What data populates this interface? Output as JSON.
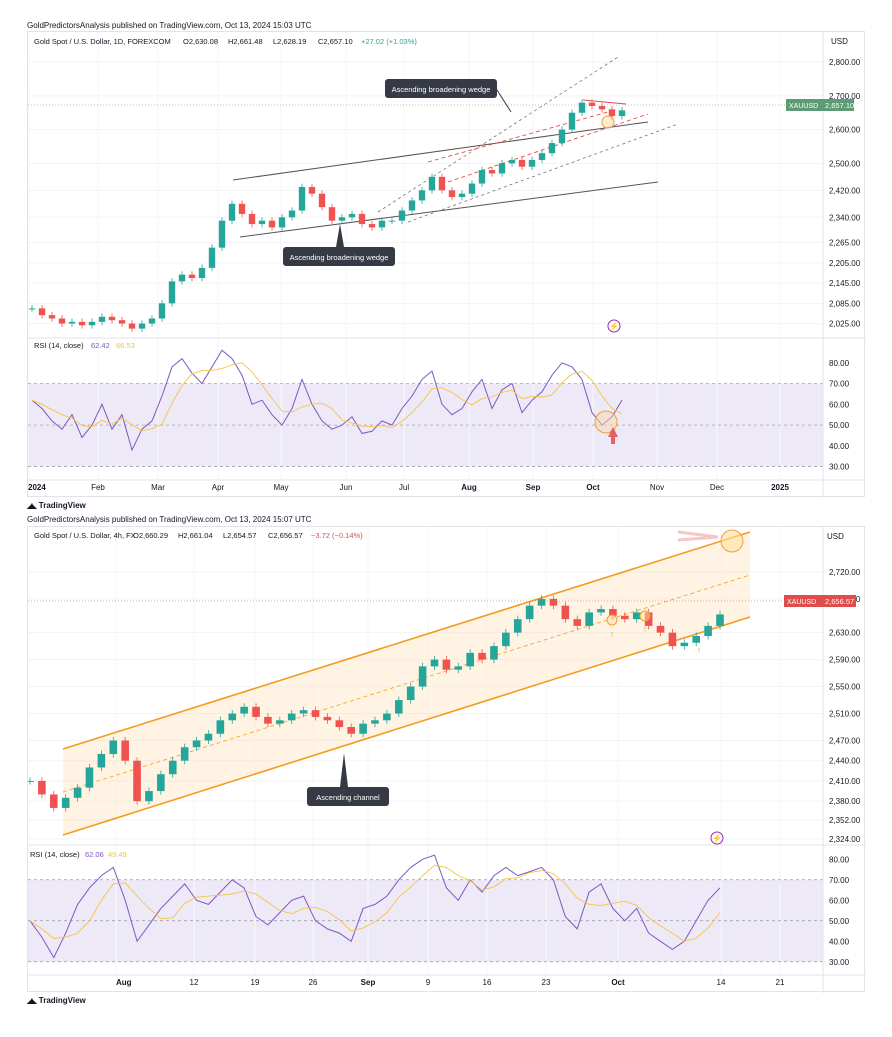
{
  "charts": [
    {
      "publisher": "GoldPredictorsAnalysis published on TradingView.com, Oct 13, 2024 15:03 UTC",
      "symbol_line": "Gold Spot / U.S. Dollar, 1D, FOREXCOM",
      "ohlc": {
        "o": "O2,630.08",
        "h": "H2,661.48",
        "l": "L2,628.19",
        "c": "C2,657.10",
        "chg": "+27.02 (+1.03%)"
      },
      "ticker": "XAUUSD",
      "last_price": "2,657.10",
      "tag_color": "#5d9b74",
      "annotation_top": "Ascending broadening wedge",
      "annotation_bottom": "Ascending broadening wedge",
      "rsi_label": "RSI (14, close)",
      "rsi_values": [
        "62.42",
        "66.53"
      ]
    },
    {
      "publisher": "GoldPredictorsAnalysis published on TradingView.com, Oct 13, 2024 15:07 UTC",
      "symbol_line": "Gold Spot / U.S. Dollar, 4h, FX",
      "ohlc": {
        "o": "O2,660.29",
        "h": "H2,661.04",
        "l": "L2,654.57",
        "c": "C2,656.57",
        "chg": "−3.72 (−0.14%)"
      },
      "ticker": "XAUUSD",
      "last_price": "2,656.57",
      "tag_color": "#e04b4b",
      "annotation": "Ascending channel",
      "rsi_label": "RSI (14, close)",
      "rsi_values": [
        "62.06",
        "49.49"
      ]
    }
  ],
  "footer_logo": "TradingView",
  "chart_data": [
    {
      "type": "line",
      "title": "Gold Spot / U.S. Dollar, 1D, FOREXCOM",
      "unit": "USD",
      "x_ticks": [
        "2024",
        "Feb",
        "Mar",
        "Apr",
        "May",
        "Jun",
        "Jul",
        "Aug",
        "Sep",
        "Oct",
        "Nov",
        "Dec",
        "2025"
      ],
      "y_ticks": [
        2800,
        2700,
        2600,
        2500,
        2420,
        2340,
        2265,
        2205,
        2145,
        2085,
        2025
      ],
      "ylim": [
        2000,
        2830
      ],
      "series": [
        {
          "values": [
            2070,
            2050,
            2040,
            2025,
            2030,
            2020,
            2030,
            2045,
            2035,
            2025,
            2010,
            2025,
            2040,
            2085,
            2150,
            2170,
            2160,
            2190,
            2250,
            2330,
            2380,
            2350,
            2320,
            2330,
            2310,
            2340,
            2360,
            2430,
            2410,
            2370,
            2330,
            2340,
            2350,
            2320,
            2310,
            2330,
            2330,
            2360,
            2390,
            2420,
            2460,
            2420,
            2400,
            2410,
            2440,
            2480,
            2470,
            2500,
            2510,
            2490,
            2510,
            2530,
            2560,
            2600,
            2650,
            2680,
            2670,
            2660,
            2640,
            2657
          ]
        }
      ],
      "rsi": {
        "ylim": [
          25,
          90
        ],
        "y_ticks": [
          80,
          70,
          60,
          50,
          40,
          30
        ],
        "band": [
          30,
          70
        ],
        "values": [
          62,
          58,
          52,
          48,
          55,
          44,
          50,
          60,
          48,
          55,
          38,
          48,
          52,
          64,
          78,
          82,
          75,
          70,
          78,
          86,
          82,
          74,
          60,
          62,
          55,
          50,
          58,
          72,
          60,
          52,
          48,
          50,
          54,
          46,
          47,
          52,
          50,
          58,
          64,
          72,
          76,
          60,
          55,
          58,
          66,
          72,
          58,
          67,
          70,
          56,
          62,
          66,
          74,
          80,
          78,
          72,
          56,
          50,
          54,
          62
        ]
      }
    },
    {
      "type": "line",
      "title": "Gold Spot / U.S. Dollar, 4h, FX",
      "unit": "USD",
      "x_ticks": [
        "Aug",
        "12",
        "19",
        "26",
        "Sep",
        "9",
        "16",
        "23",
        "Oct",
        "14",
        "21"
      ],
      "y_ticks": [
        2720,
        2680,
        2630,
        2590,
        2550,
        2510,
        2470,
        2440,
        2410,
        2380,
        2352,
        2324
      ],
      "ylim": [
        2315,
        2760
      ],
      "series": [
        {
          "values": [
            2410,
            2390,
            2370,
            2385,
            2400,
            2430,
            2450,
            2470,
            2440,
            2380,
            2395,
            2420,
            2440,
            2460,
            2470,
            2480,
            2500,
            2510,
            2520,
            2505,
            2495,
            2500,
            2510,
            2515,
            2505,
            2500,
            2490,
            2480,
            2495,
            2500,
            2510,
            2530,
            2550,
            2580,
            2590,
            2575,
            2580,
            2600,
            2590,
            2610,
            2630,
            2650,
            2670,
            2680,
            2670,
            2650,
            2640,
            2660,
            2665,
            2655,
            2650,
            2660,
            2640,
            2630,
            2610,
            2615,
            2625,
            2640,
            2657
          ]
        }
      ],
      "rsi": {
        "ylim": [
          25,
          85
        ],
        "y_ticks": [
          80,
          70,
          60,
          50,
          40,
          30
        ],
        "band": [
          30,
          70
        ],
        "values": [
          50,
          42,
          32,
          44,
          58,
          66,
          72,
          76,
          60,
          40,
          48,
          56,
          62,
          68,
          60,
          58,
          64,
          70,
          66,
          52,
          48,
          54,
          60,
          62,
          50,
          46,
          44,
          40,
          56,
          58,
          62,
          70,
          76,
          80,
          82,
          66,
          60,
          70,
          64,
          72,
          76,
          72,
          74,
          76,
          70,
          52,
          46,
          64,
          68,
          56,
          50,
          56,
          44,
          40,
          36,
          40,
          50,
          60,
          66
        ]
      }
    }
  ]
}
